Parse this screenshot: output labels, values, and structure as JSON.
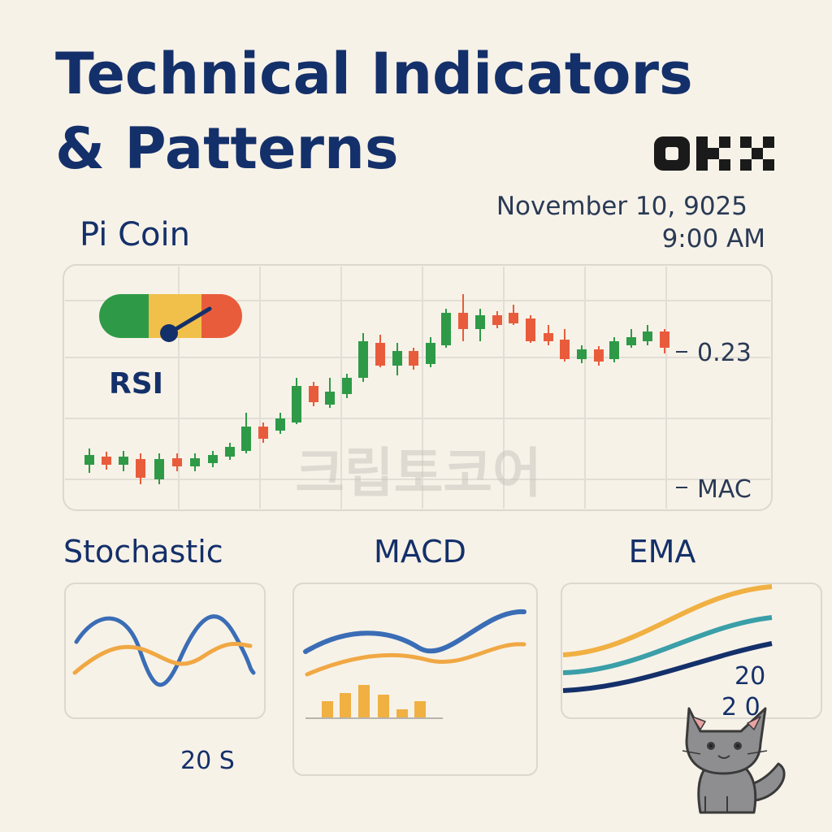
{
  "header": {
    "title_lines": [
      "Technical Indicators",
      "& Patterns"
    ],
    "date": "November 10, 9025",
    "time": "9:00 AM"
  },
  "coin": "Pi Coin",
  "main_chart": {
    "gauge_label": "RSI",
    "price_label": "0.23",
    "indicator_label": "MAC",
    "watermark": "크립토코어"
  },
  "panels": [
    {
      "title": "Stochastic",
      "labels": [
        "20 S"
      ]
    },
    {
      "title": "MACD"
    },
    {
      "title": "EMA",
      "labels": [
        "20",
        "2 0"
      ]
    }
  ]
}
